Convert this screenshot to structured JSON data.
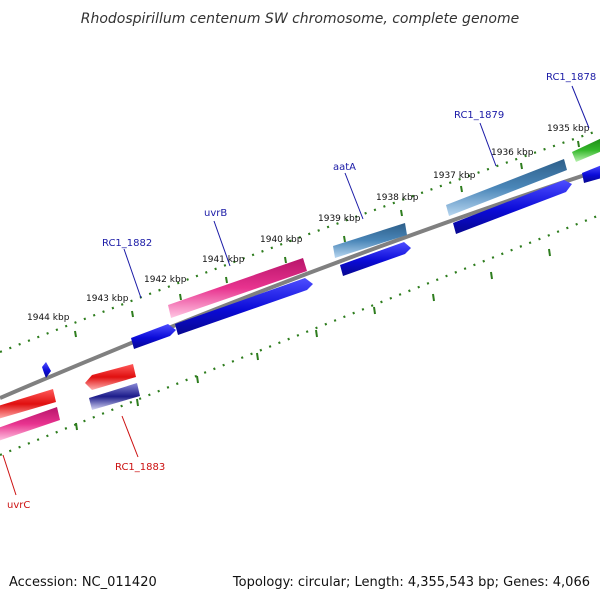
{
  "title": "Rhodospirillum centenum SW chromosome, complete genome",
  "footer": {
    "accession": "Accession: NC_011420",
    "summary": "Topology: circular; Length: 4,355,543 bp; Genes: 4,066"
  },
  "tick_labels": [
    "1935 kbp",
    "1936 kbp",
    "1937 kbp",
    "1938 kbp",
    "1939 kbp",
    "1940 kbp",
    "1941 kbp",
    "1942 kbp",
    "1943 kbp",
    "1944 kbp"
  ],
  "genes": {
    "forward": [
      "RC1_1878",
      "RC1_1879",
      "aatA",
      "uvrB",
      "RC1_1882"
    ],
    "reverse": [
      "RC1_1883",
      "uvrC"
    ]
  },
  "colors": {
    "forward_label": "#1a1aa6",
    "reverse_label": "#cc1111",
    "backbone": "#808080",
    "tick": "#2e7d1e",
    "cds_blue": "#0b0bd8",
    "pink": "#e8338f",
    "steel_blue": "#4a86b8",
    "red": "#e01010",
    "green": "#34b82a",
    "navy": "#1c1c8a"
  }
}
